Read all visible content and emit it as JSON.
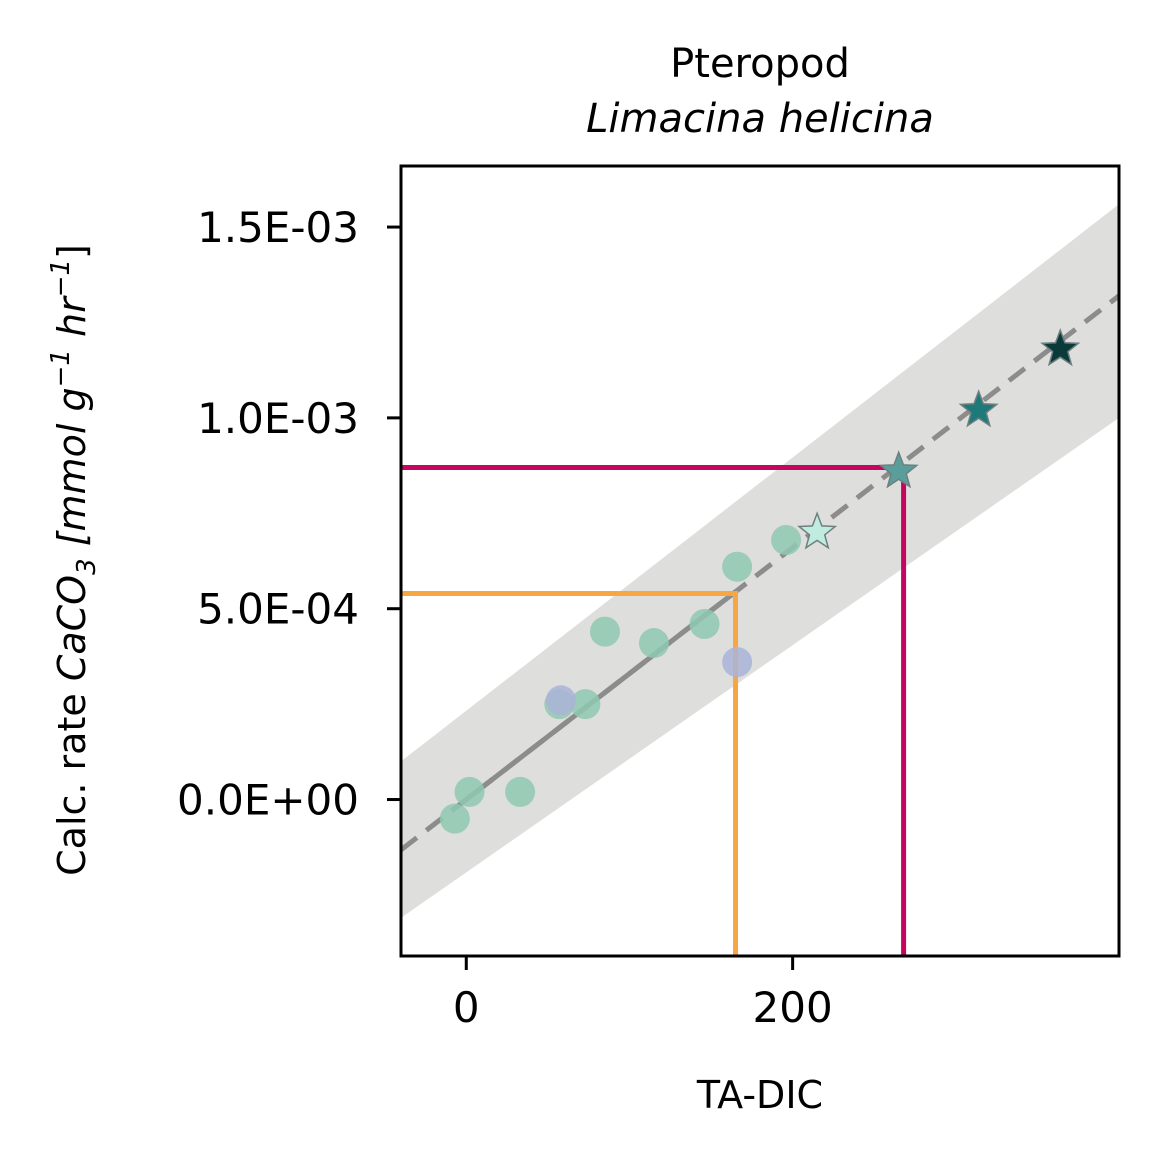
{
  "chart_data": {
    "type": "scatter",
    "title": "Pteropod",
    "subtitle": "Limacina helicina",
    "xlabel": "TA-DIC",
    "ylabel": {
      "prefix": "Calc. rate ",
      "formula_main": "CaCO",
      "formula_sub": "3",
      "unit_open": " [mmol g",
      "unit_sup1": "−1",
      "unit_mid": " hr",
      "unit_sup2": "−1",
      "unit_close": "]"
    },
    "xlim": [
      -40,
      400
    ],
    "ylim": [
      -0.00041,
      0.00166
    ],
    "x_ticks": [
      {
        "value": 0,
        "label": "0"
      },
      {
        "value": 200,
        "label": "200"
      }
    ],
    "y_ticks": [
      {
        "value": 0.0,
        "label": "0.0E+00"
      },
      {
        "value": 0.0005,
        "label": "5.0E-04"
      },
      {
        "value": 0.001,
        "label": "1.0E-03"
      },
      {
        "value": 0.0015,
        "label": "1.5E-03"
      }
    ],
    "grid": false,
    "fit": {
      "color": "#8c8c8c",
      "slope": 3.3e-06,
      "intercept": 0.0,
      "solid_x_range": [
        -7,
        165
      ],
      "ci_upper": [
        [
          -40,
          0.0001
        ],
        [
          400,
          0.00156
        ]
      ],
      "ci_lower": [
        [
          -40,
          -0.00031
        ],
        [
          400,
          0.001
        ]
      ],
      "ci_color": "#dededc"
    },
    "series": [
      {
        "color": "#8fc9b0",
        "points": [
          [
            -7,
            -5e-05
          ],
          [
            2,
            2e-05
          ],
          [
            33,
            2e-05
          ],
          [
            57,
            0.00025
          ],
          [
            73,
            0.00025
          ],
          [
            85,
            0.00044
          ],
          [
            115,
            0.00041
          ],
          [
            146,
            0.00046
          ],
          [
            166,
            0.00061
          ],
          [
            196,
            0.00068
          ]
        ]
      },
      {
        "color": "#aab4d8",
        "points": [
          [
            58,
            0.00026
          ],
          [
            166,
            0.00036
          ]
        ]
      }
    ],
    "stars": [
      {
        "x": 215,
        "y": 0.0007,
        "color": "#c0ece0"
      },
      {
        "x": 265,
        "y": 0.00086,
        "color": "#5a9e9c"
      },
      {
        "x": 314,
        "y": 0.00102,
        "color": "#1e7a7a"
      },
      {
        "x": 364,
        "y": 0.00118,
        "color": "#0a3a3a"
      }
    ],
    "guide_lines": [
      {
        "x": 165,
        "y": 0.00054,
        "color": "#f6a743"
      },
      {
        "x": 268,
        "y": 0.00087,
        "color": "#c3075f"
      }
    ]
  }
}
